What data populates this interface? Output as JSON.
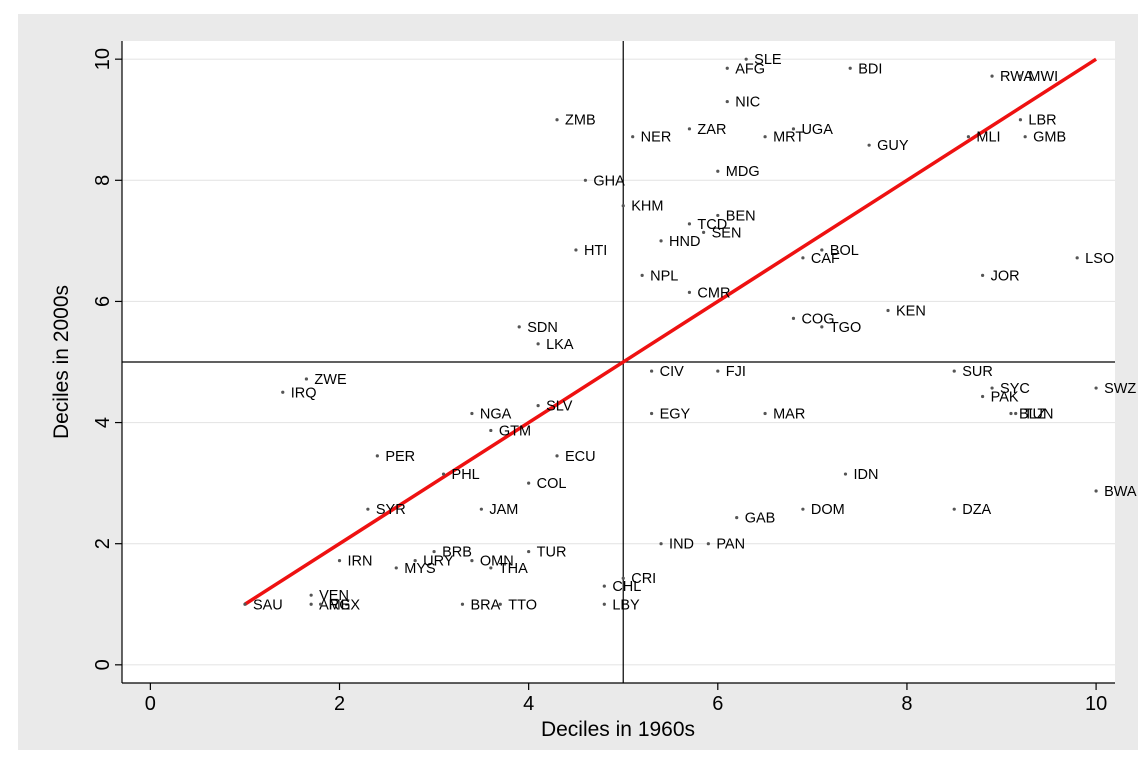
{
  "chart_data": {
    "type": "scatter",
    "title": "",
    "xlabel": "Deciles in 1960s",
    "ylabel": "Deciles in 2000s",
    "xlim": [
      -0.3,
      10.2
    ],
    "ylim": [
      -0.3,
      10.3
    ],
    "xticks": [
      0,
      2,
      4,
      6,
      8,
      10
    ],
    "yticks": [
      0,
      2,
      4,
      6,
      8,
      10
    ],
    "grid": "horizontal",
    "reference_lines": {
      "x": 5,
      "y": 5
    },
    "fit_line": {
      "x": [
        1,
        10
      ],
      "y": [
        1,
        10
      ],
      "color": "#ee1111"
    },
    "marker_color": "#555555",
    "points": [
      {
        "label": "SLE",
        "x": 6.3,
        "y": 10.0
      },
      {
        "label": "AFG",
        "x": 6.1,
        "y": 9.85
      },
      {
        "label": "BDI",
        "x": 7.4,
        "y": 9.85
      },
      {
        "label": "RWA",
        "x": 8.9,
        "y": 9.72
      },
      {
        "label": "MWI",
        "x": 9.2,
        "y": 9.72
      },
      {
        "label": "NIC",
        "x": 6.1,
        "y": 9.3
      },
      {
        "label": "LBR",
        "x": 9.2,
        "y": 9.0
      },
      {
        "label": "ZMB",
        "x": 4.3,
        "y": 9.0
      },
      {
        "label": "ZAR",
        "x": 5.7,
        "y": 8.85
      },
      {
        "label": "UGA",
        "x": 6.8,
        "y": 8.85
      },
      {
        "label": "NER",
        "x": 5.1,
        "y": 8.72
      },
      {
        "label": "MRT",
        "x": 6.5,
        "y": 8.72
      },
      {
        "label": "MLI",
        "x": 8.65,
        "y": 8.72
      },
      {
        "label": "GMB",
        "x": 9.25,
        "y": 8.72
      },
      {
        "label": "GUY",
        "x": 7.6,
        "y": 8.58
      },
      {
        "label": "MDG",
        "x": 6.0,
        "y": 8.15
      },
      {
        "label": "GHA",
        "x": 4.6,
        "y": 8.0
      },
      {
        "label": "KHM",
        "x": 5.0,
        "y": 7.58
      },
      {
        "label": "BEN",
        "x": 6.0,
        "y": 7.42
      },
      {
        "label": "TCD",
        "x": 5.7,
        "y": 7.28
      },
      {
        "label": "SEN",
        "x": 5.85,
        "y": 7.14
      },
      {
        "label": "HND",
        "x": 5.4,
        "y": 7.0
      },
      {
        "label": "HTI",
        "x": 4.5,
        "y": 6.85
      },
      {
        "label": "BOL",
        "x": 7.1,
        "y": 6.85
      },
      {
        "label": "CAF",
        "x": 6.9,
        "y": 6.72
      },
      {
        "label": "LSO",
        "x": 9.8,
        "y": 6.72
      },
      {
        "label": "NPL",
        "x": 5.2,
        "y": 6.43
      },
      {
        "label": "JOR",
        "x": 8.8,
        "y": 6.43
      },
      {
        "label": "CMR",
        "x": 5.7,
        "y": 6.15
      },
      {
        "label": "KEN",
        "x": 7.8,
        "y": 5.85
      },
      {
        "label": "COG",
        "x": 6.8,
        "y": 5.72
      },
      {
        "label": "TGO",
        "x": 7.1,
        "y": 5.58
      },
      {
        "label": "SDN",
        "x": 3.9,
        "y": 5.58
      },
      {
        "label": "LKA",
        "x": 4.1,
        "y": 5.3
      },
      {
        "label": "CIV",
        "x": 5.3,
        "y": 4.85
      },
      {
        "label": "FJI",
        "x": 6.0,
        "y": 4.85
      },
      {
        "label": "SUR",
        "x": 8.5,
        "y": 4.85
      },
      {
        "label": "ZWE",
        "x": 1.65,
        "y": 4.72
      },
      {
        "label": "SYC",
        "x": 8.9,
        "y": 4.57
      },
      {
        "label": "SWZ",
        "x": 10.0,
        "y": 4.57
      },
      {
        "label": "IRQ",
        "x": 1.4,
        "y": 4.5
      },
      {
        "label": "PAK",
        "x": 8.8,
        "y": 4.43
      },
      {
        "label": "SLV",
        "x": 4.1,
        "y": 4.28
      },
      {
        "label": "NGA",
        "x": 3.4,
        "y": 4.15
      },
      {
        "label": "EGY",
        "x": 5.3,
        "y": 4.15
      },
      {
        "label": "MAR",
        "x": 6.5,
        "y": 4.15
      },
      {
        "label": "BLZ",
        "x": 9.1,
        "y": 4.15
      },
      {
        "label": "TUN",
        "x": 9.15,
        "y": 4.15
      },
      {
        "label": "GTM",
        "x": 3.6,
        "y": 3.87
      },
      {
        "label": "PER",
        "x": 2.4,
        "y": 3.45
      },
      {
        "label": "ECU",
        "x": 4.3,
        "y": 3.45
      },
      {
        "label": "PHL",
        "x": 3.1,
        "y": 3.15
      },
      {
        "label": "IDN",
        "x": 7.35,
        "y": 3.15
      },
      {
        "label": "COL",
        "x": 4.0,
        "y": 3.0
      },
      {
        "label": "BWA",
        "x": 10.0,
        "y": 2.87
      },
      {
        "label": "SYR",
        "x": 2.3,
        "y": 2.57
      },
      {
        "label": "JAM",
        "x": 3.5,
        "y": 2.57
      },
      {
        "label": "DOM",
        "x": 6.9,
        "y": 2.57
      },
      {
        "label": "DZA",
        "x": 8.5,
        "y": 2.57
      },
      {
        "label": "GAB",
        "x": 6.2,
        "y": 2.43
      },
      {
        "label": "IND",
        "x": 5.4,
        "y": 2.0
      },
      {
        "label": "PAN",
        "x": 5.9,
        "y": 2.0
      },
      {
        "label": "BRB",
        "x": 3.0,
        "y": 1.87
      },
      {
        "label": "TUR",
        "x": 4.0,
        "y": 1.87
      },
      {
        "label": "IRN",
        "x": 2.0,
        "y": 1.72
      },
      {
        "label": "URY",
        "x": 2.8,
        "y": 1.72
      },
      {
        "label": "OMN",
        "x": 3.4,
        "y": 1.72
      },
      {
        "label": "THA",
        "x": 3.6,
        "y": 1.6
      },
      {
        "label": "MYS",
        "x": 2.6,
        "y": 1.6
      },
      {
        "label": "CRI",
        "x": 5.0,
        "y": 1.43
      },
      {
        "label": "CHL",
        "x": 4.8,
        "y": 1.3
      },
      {
        "label": "VEN",
        "x": 1.7,
        "y": 1.15
      },
      {
        "label": "SAU",
        "x": 1.0,
        "y": 1.0
      },
      {
        "label": "ARG",
        "x": 1.7,
        "y": 1.0
      },
      {
        "label": "MEX",
        "x": 1.8,
        "y": 1.0
      },
      {
        "label": "BRA",
        "x": 3.3,
        "y": 1.0
      },
      {
        "label": "TTO",
        "x": 3.7,
        "y": 1.0
      },
      {
        "label": "LBY",
        "x": 4.8,
        "y": 1.0
      }
    ]
  }
}
